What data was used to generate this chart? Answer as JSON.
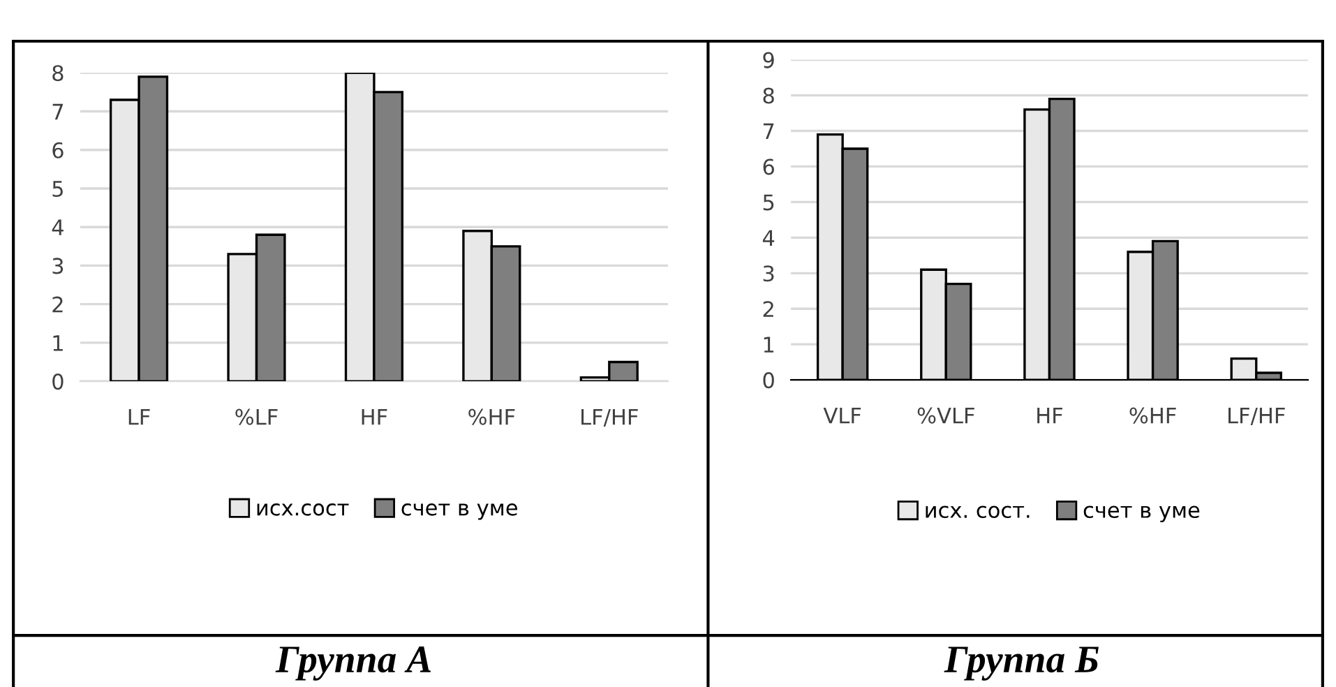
{
  "chart_data": [
    {
      "type": "bar",
      "categories": [
        "LF",
        "%LF",
        "HF",
        "%HF",
        "LF/HF"
      ],
      "ylim": [
        0,
        8
      ],
      "yticks": [
        0,
        1,
        2,
        3,
        4,
        5,
        6,
        7,
        8
      ],
      "grid": "y",
      "legend": "bottom",
      "annotations": [
        "Группа А"
      ],
      "series": [
        {
          "name": "исх.сост",
          "color": "#e8e8e8",
          "values": [
            7.3,
            3.3,
            8.0,
            3.9,
            0.1
          ]
        },
        {
          "name": "счет в уме",
          "color": "#7f7f7f",
          "values": [
            7.9,
            3.8,
            7.5,
            3.5,
            0.5
          ]
        }
      ]
    },
    {
      "type": "bar",
      "categories": [
        "VLF",
        "%VLF",
        "HF",
        "%HF",
        "LF/HF"
      ],
      "ylim": [
        0,
        9
      ],
      "yticks": [
        0,
        1,
        2,
        3,
        4,
        5,
        6,
        7,
        8,
        9
      ],
      "grid": "y",
      "legend": "bottom",
      "annotations": [
        "Группа Б"
      ],
      "series": [
        {
          "name": "исх. сост.",
          "color": "#e8e8e8",
          "values": [
            6.9,
            3.1,
            7.6,
            3.6,
            0.6
          ]
        },
        {
          "name": "счет в уме",
          "color": "#7f7f7f",
          "values": [
            6.5,
            2.7,
            7.9,
            3.9,
            0.2
          ]
        }
      ]
    }
  ]
}
